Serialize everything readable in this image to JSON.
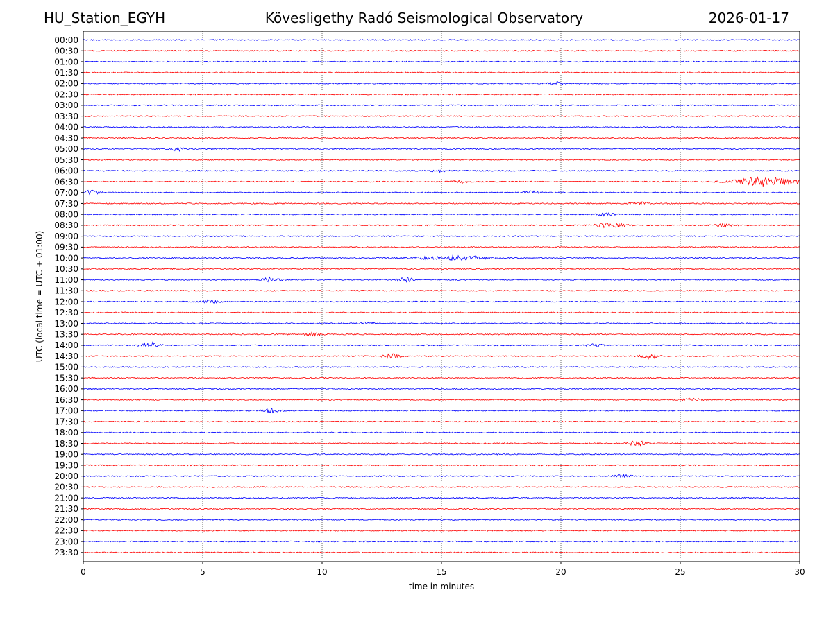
{
  "header": {
    "station": "HU_Station_EGYH",
    "title": "Kövesligethy Radó Seismological Observatory",
    "date": "2026-01-17"
  },
  "chart_data": {
    "type": "line",
    "title": "Kövesligethy Radó Seismological Observatory",
    "xlabel": "time in minutes",
    "ylabel": "UTC (local time = UTC + 01:00)",
    "xlim": [
      0,
      30
    ],
    "xticks": [
      0,
      5,
      10,
      15,
      20,
      25,
      30
    ],
    "grid": "vertical dotted lines at x = 5, 10, 15, 20, 25",
    "row_labels": [
      "00:00",
      "00:30",
      "01:00",
      "01:30",
      "02:00",
      "02:30",
      "03:00",
      "03:30",
      "04:00",
      "04:30",
      "05:00",
      "05:30",
      "06:00",
      "06:30",
      "07:00",
      "07:30",
      "08:00",
      "08:30",
      "09:00",
      "09:30",
      "10:00",
      "10:30",
      "11:00",
      "11:30",
      "12:00",
      "12:30",
      "13:00",
      "13:30",
      "14:00",
      "14:30",
      "15:00",
      "15:30",
      "16:00",
      "16:30",
      "17:00",
      "17:30",
      "18:00",
      "18:30",
      "19:00",
      "19:30",
      "20:00",
      "20:30",
      "21:00",
      "21:30",
      "22:00",
      "22:30",
      "23:00",
      "23:30"
    ],
    "trace_colors": [
      "#0000ff",
      "#ff0000"
    ],
    "events": [
      {
        "row": "02:00",
        "x": 19.8,
        "amp": 2
      },
      {
        "row": "05:00",
        "x": 4.0,
        "amp": 2.5
      },
      {
        "row": "06:00",
        "x": 14.9,
        "amp": 1.5
      },
      {
        "row": "06:30",
        "x": 15.8,
        "amp": 2
      },
      {
        "row": "06:30",
        "x": 28.6,
        "amp": 7,
        "width": 1.2
      },
      {
        "row": "07:00",
        "x": 0.3,
        "amp": 3
      },
      {
        "row": "07:00",
        "x": 18.7,
        "amp": 2
      },
      {
        "row": "07:30",
        "x": 23.3,
        "amp": 2
      },
      {
        "row": "08:00",
        "x": 21.9,
        "amp": 2
      },
      {
        "row": "08:30",
        "x": 21.8,
        "amp": 3
      },
      {
        "row": "08:30",
        "x": 22.4,
        "amp": 3
      },
      {
        "row": "08:30",
        "x": 26.8,
        "amp": 2
      },
      {
        "row": "10:00",
        "x": 15.6,
        "amp": 3,
        "width": 1.5
      },
      {
        "row": "11:00",
        "x": 7.8,
        "amp": 3
      },
      {
        "row": "11:00",
        "x": 13.5,
        "amp": 3
      },
      {
        "row": "12:00",
        "x": 5.3,
        "amp": 2.5
      },
      {
        "row": "13:00",
        "x": 11.8,
        "amp": 2
      },
      {
        "row": "13:30",
        "x": 9.6,
        "amp": 2.5
      },
      {
        "row": "14:00",
        "x": 2.8,
        "amp": 4
      },
      {
        "row": "14:00",
        "x": 21.4,
        "amp": 2
      },
      {
        "row": "14:30",
        "x": 12.9,
        "amp": 3
      },
      {
        "row": "14:30",
        "x": 23.7,
        "amp": 3.5
      },
      {
        "row": "16:30",
        "x": 25.5,
        "amp": 2
      },
      {
        "row": "17:00",
        "x": 7.9,
        "amp": 3
      },
      {
        "row": "18:30",
        "x": 23.2,
        "amp": 3.5
      },
      {
        "row": "20:00",
        "x": 22.6,
        "amp": 2
      }
    ]
  }
}
